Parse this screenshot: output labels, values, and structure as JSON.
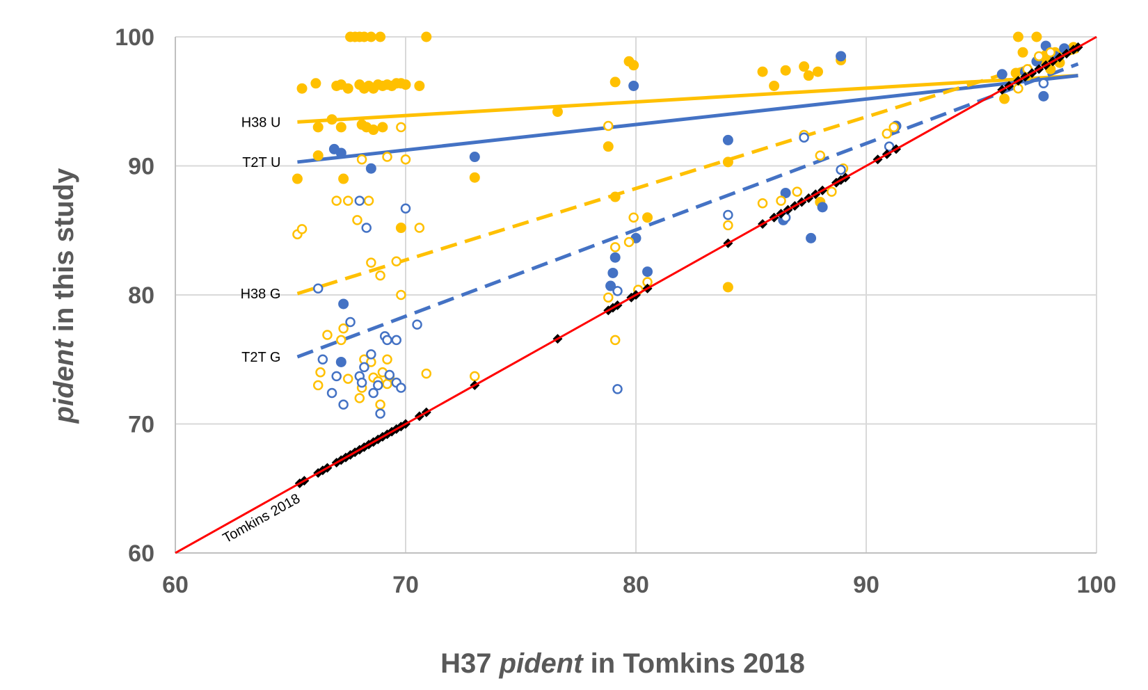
{
  "chart_data": {
    "type": "scatter",
    "xlabel_parts": [
      "H37 ",
      "pident",
      " in Tomkins 2018"
    ],
    "ylabel_parts": [
      "pident",
      " in this study"
    ],
    "xlim": [
      60,
      100
    ],
    "ylim": [
      60,
      100
    ],
    "xticks": [
      60,
      70,
      80,
      90,
      100
    ],
    "yticks": [
      60,
      70,
      80,
      90,
      100
    ],
    "grid": true,
    "colors": {
      "h38": "#FFC000",
      "t2t": "#4472C4",
      "identity": "#FF0000",
      "tomkins": "#000000",
      "grid": "#D9D9D9"
    },
    "trendlines": [
      {
        "label": "H38 U",
        "color": "#FFC000",
        "dash": false,
        "from": [
          65.3,
          93.4
        ],
        "to": [
          99.2,
          97.0
        ]
      },
      {
        "label": "T2T U",
        "color": "#4472C4",
        "dash": false,
        "from": [
          65.3,
          90.3
        ],
        "to": [
          99.2,
          97.0
        ]
      },
      {
        "label": "H38 G",
        "color": "#FFC000",
        "dash": true,
        "from": [
          65.3,
          80.1
        ],
        "to": [
          99.2,
          98.9
        ]
      },
      {
        "label": "T2T G",
        "color": "#4472C4",
        "dash": true,
        "from": [
          65.3,
          75.2
        ],
        "to": [
          99.2,
          97.9
        ]
      }
    ],
    "identity_line": {
      "label": "Tomkins 2018",
      "from": [
        60,
        60
      ],
      "to": [
        100,
        100
      ]
    },
    "series": [
      {
        "name": "H38 U",
        "color": "#FFC000",
        "marker": "filled-circle",
        "points": [
          [
            65.3,
            89.0
          ],
          [
            65.5,
            96.0
          ],
          [
            66.1,
            96.4
          ],
          [
            66.2,
            93.0
          ],
          [
            66.2,
            90.8
          ],
          [
            66.8,
            93.6
          ],
          [
            67.0,
            96.2
          ],
          [
            67.2,
            96.3
          ],
          [
            67.2,
            93.0
          ],
          [
            67.5,
            96.0
          ],
          [
            67.3,
            89.0
          ],
          [
            67.6,
            100
          ],
          [
            67.8,
            100
          ],
          [
            68.0,
            100
          ],
          [
            68.2,
            100
          ],
          [
            68.5,
            100
          ],
          [
            68.9,
            100
          ],
          [
            68.0,
            96.3
          ],
          [
            68.2,
            96.0
          ],
          [
            68.4,
            96.2
          ],
          [
            68.6,
            96.0
          ],
          [
            68.8,
            96.3
          ],
          [
            69.0,
            96.2
          ],
          [
            69.2,
            96.3
          ],
          [
            69.4,
            96.2
          ],
          [
            69.6,
            96.4
          ],
          [
            69.8,
            96.4
          ],
          [
            70.0,
            96.3
          ],
          [
            70.6,
            96.2
          ],
          [
            68.1,
            93.2
          ],
          [
            68.3,
            93.0
          ],
          [
            68.6,
            92.8
          ],
          [
            69.0,
            93.0
          ],
          [
            70.9,
            100
          ],
          [
            69.8,
            85.2
          ],
          [
            73.0,
            89.1
          ],
          [
            76.6,
            94.2
          ],
          [
            78.8,
            91.5
          ],
          [
            79.1,
            96.5
          ],
          [
            79.7,
            98.1
          ],
          [
            79.9,
            97.8
          ],
          [
            79.1,
            87.6
          ],
          [
            80.5,
            86.0
          ],
          [
            84.0,
            90.3
          ],
          [
            84.0,
            80.6
          ],
          [
            85.5,
            97.3
          ],
          [
            86.0,
            96.2
          ],
          [
            86.5,
            97.4
          ],
          [
            87.3,
            97.7
          ],
          [
            87.5,
            97.0
          ],
          [
            87.9,
            97.3
          ],
          [
            88.9,
            98.2
          ],
          [
            88.0,
            87.2
          ],
          [
            96.6,
            100
          ],
          [
            97.4,
            100
          ],
          [
            96.8,
            98.8
          ],
          [
            97.0,
            97.0
          ],
          [
            97.8,
            98.6
          ],
          [
            98.2,
            98.8
          ],
          [
            98.6,
            99.0
          ],
          [
            99.0,
            99.2
          ],
          [
            96.0,
            95.2
          ],
          [
            96.5,
            97.2
          ],
          [
            97.5,
            98.2
          ],
          [
            98.0,
            97.5
          ],
          [
            98.4,
            98.0
          ]
        ]
      },
      {
        "name": "T2T U",
        "color": "#4472C4",
        "marker": "filled-circle",
        "points": [
          [
            66.9,
            91.3
          ],
          [
            67.2,
            91.0
          ],
          [
            67.3,
            79.3
          ],
          [
            67.2,
            74.8
          ],
          [
            68.5,
            89.8
          ],
          [
            73.0,
            90.7
          ],
          [
            78.9,
            80.7
          ],
          [
            79.1,
            82.9
          ],
          [
            79.0,
            81.7
          ],
          [
            79.9,
            96.2
          ],
          [
            80.0,
            84.4
          ],
          [
            80.5,
            81.8
          ],
          [
            84.0,
            92.0
          ],
          [
            86.5,
            87.9
          ],
          [
            86.4,
            85.8
          ],
          [
            87.6,
            84.4
          ],
          [
            88.1,
            86.8
          ],
          [
            88.9,
            98.5
          ],
          [
            91.3,
            93.1
          ],
          [
            95.9,
            97.1
          ],
          [
            96.9,
            97.3
          ],
          [
            97.4,
            98.1
          ],
          [
            97.7,
            95.4
          ],
          [
            97.8,
            99.3
          ],
          [
            98.2,
            98.5
          ],
          [
            98.6,
            99.1
          ]
        ]
      },
      {
        "name": "H38 G",
        "color": "#FFC000",
        "marker": "open-circle",
        "points": [
          [
            65.3,
            84.7
          ],
          [
            65.5,
            85.1
          ],
          [
            66.2,
            73.0
          ],
          [
            66.3,
            74.0
          ],
          [
            66.6,
            76.9
          ],
          [
            67.0,
            87.3
          ],
          [
            67.2,
            76.5
          ],
          [
            67.3,
            77.4
          ],
          [
            67.5,
            87.3
          ],
          [
            67.9,
            85.8
          ],
          [
            68.1,
            90.5
          ],
          [
            68.4,
            87.3
          ],
          [
            67.5,
            73.5
          ],
          [
            68.0,
            72.0
          ],
          [
            68.1,
            72.8
          ],
          [
            68.2,
            75.0
          ],
          [
            68.5,
            74.8
          ],
          [
            68.6,
            73.6
          ],
          [
            68.8,
            73.3
          ],
          [
            68.9,
            71.5
          ],
          [
            69.0,
            74.0
          ],
          [
            69.2,
            73.1
          ],
          [
            69.3,
            73.7
          ],
          [
            69.2,
            75.0
          ],
          [
            68.9,
            81.5
          ],
          [
            68.5,
            82.5
          ],
          [
            69.6,
            82.6
          ],
          [
            69.8,
            80.0
          ],
          [
            69.8,
            93.0
          ],
          [
            70.0,
            90.5
          ],
          [
            69.2,
            90.7
          ],
          [
            70.6,
            85.2
          ],
          [
            70.9,
            73.9
          ],
          [
            73.0,
            73.7
          ],
          [
            78.8,
            93.1
          ],
          [
            78.8,
            79.8
          ],
          [
            79.1,
            76.5
          ],
          [
            79.1,
            83.7
          ],
          [
            79.7,
            84.1
          ],
          [
            79.9,
            86.0
          ],
          [
            80.1,
            80.4
          ],
          [
            80.5,
            81.0
          ],
          [
            84.0,
            85.4
          ],
          [
            85.5,
            87.1
          ],
          [
            86.3,
            87.3
          ],
          [
            87.0,
            88.0
          ],
          [
            87.3,
            92.4
          ],
          [
            88.0,
            90.8
          ],
          [
            88.5,
            88.0
          ],
          [
            89.0,
            89.8
          ],
          [
            90.9,
            92.5
          ],
          [
            91.2,
            93.0
          ],
          [
            96.6,
            96.0
          ],
          [
            97.0,
            97.5
          ],
          [
            97.5,
            98.5
          ],
          [
            98.0,
            98.8
          ]
        ]
      },
      {
        "name": "T2T G",
        "color": "#4472C4",
        "marker": "open-circle",
        "points": [
          [
            66.2,
            80.5
          ],
          [
            66.4,
            75.0
          ],
          [
            66.8,
            72.4
          ],
          [
            67.0,
            73.7
          ],
          [
            67.3,
            71.5
          ],
          [
            67.6,
            77.9
          ],
          [
            68.0,
            87.3
          ],
          [
            68.2,
            74.4
          ],
          [
            68.0,
            73.7
          ],
          [
            68.1,
            73.2
          ],
          [
            68.3,
            85.2
          ],
          [
            68.5,
            75.4
          ],
          [
            68.6,
            72.4
          ],
          [
            68.8,
            73.0
          ],
          [
            68.9,
            70.8
          ],
          [
            69.1,
            76.8
          ],
          [
            69.2,
            76.5
          ],
          [
            69.3,
            73.8
          ],
          [
            69.6,
            76.5
          ],
          [
            69.6,
            73.2
          ],
          [
            69.8,
            72.8
          ],
          [
            70.0,
            86.7
          ],
          [
            70.5,
            77.7
          ],
          [
            79.2,
            72.7
          ],
          [
            79.2,
            80.3
          ],
          [
            84.0,
            86.2
          ],
          [
            86.5,
            86.0
          ],
          [
            87.3,
            92.2
          ],
          [
            88.9,
            89.7
          ],
          [
            91.0,
            91.5
          ],
          [
            97.7,
            96.4
          ]
        ]
      },
      {
        "name": "Tomkins 2018",
        "color": "#000000",
        "marker": "diamond",
        "points": [
          [
            65.4,
            65.4
          ],
          [
            65.6,
            65.6
          ],
          [
            66.2,
            66.2
          ],
          [
            66.4,
            66.4
          ],
          [
            66.6,
            66.6
          ],
          [
            67.0,
            67.0
          ],
          [
            67.2,
            67.2
          ],
          [
            67.4,
            67.4
          ],
          [
            67.6,
            67.6
          ],
          [
            67.8,
            67.8
          ],
          [
            68.0,
            68.0
          ],
          [
            68.2,
            68.2
          ],
          [
            68.4,
            68.4
          ],
          [
            68.6,
            68.6
          ],
          [
            68.8,
            68.8
          ],
          [
            69.0,
            69.0
          ],
          [
            69.2,
            69.2
          ],
          [
            69.4,
            69.4
          ],
          [
            69.6,
            69.6
          ],
          [
            69.8,
            69.8
          ],
          [
            70.0,
            70.0
          ],
          [
            70.6,
            70.6
          ],
          [
            70.9,
            70.9
          ],
          [
            73.0,
            73.0
          ],
          [
            76.6,
            76.6
          ],
          [
            78.8,
            78.8
          ],
          [
            79.0,
            79.0
          ],
          [
            79.2,
            79.2
          ],
          [
            79.8,
            79.8
          ],
          [
            80.0,
            80.0
          ],
          [
            80.5,
            80.5
          ],
          [
            84.0,
            84.0
          ],
          [
            85.5,
            85.5
          ],
          [
            86.0,
            86.0
          ],
          [
            86.3,
            86.3
          ],
          [
            86.6,
            86.6
          ],
          [
            86.9,
            86.9
          ],
          [
            87.2,
            87.2
          ],
          [
            87.5,
            87.5
          ],
          [
            87.8,
            87.8
          ],
          [
            88.1,
            88.1
          ],
          [
            88.7,
            88.7
          ],
          [
            88.9,
            88.9
          ],
          [
            89.1,
            89.1
          ],
          [
            90.5,
            90.5
          ],
          [
            90.9,
            90.9
          ],
          [
            91.3,
            91.3
          ],
          [
            95.9,
            95.9
          ],
          [
            96.2,
            96.2
          ],
          [
            96.6,
            96.6
          ],
          [
            96.9,
            96.9
          ],
          [
            97.2,
            97.2
          ],
          [
            97.5,
            97.5
          ],
          [
            97.8,
            97.8
          ],
          [
            98.1,
            98.1
          ],
          [
            98.4,
            98.4
          ],
          [
            98.7,
            98.7
          ],
          [
            99.0,
            99.0
          ],
          [
            99.2,
            99.2
          ]
        ]
      }
    ]
  }
}
